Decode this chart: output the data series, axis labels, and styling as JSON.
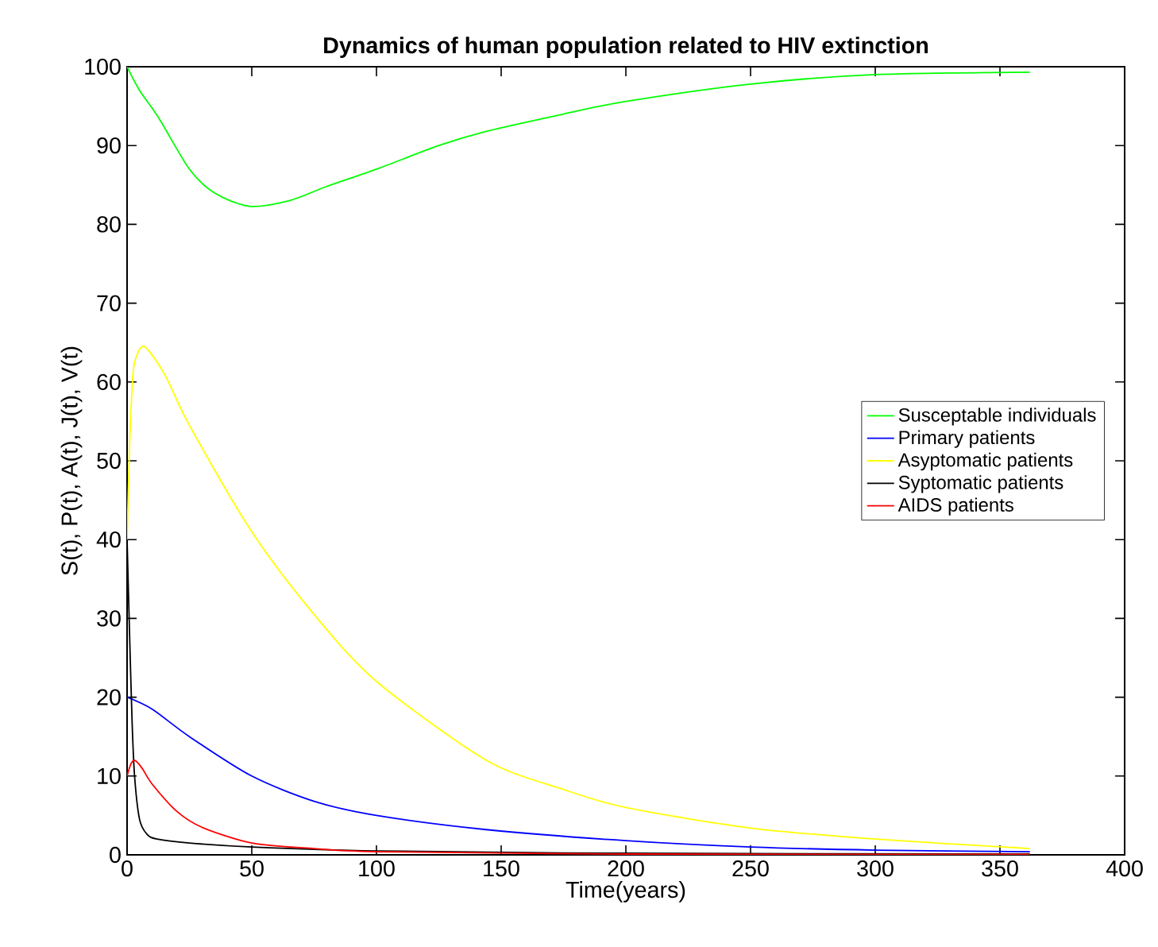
{
  "chart_data": {
    "type": "line",
    "title": "Dynamics of human population related to HIV extinction",
    "xlabel": "Time(years)",
    "ylabel": "S(t), P(t), A(t), J(t), V(t)",
    "xlim": [
      0,
      400
    ],
    "ylim": [
      0,
      100
    ],
    "xticks": [
      0,
      50,
      100,
      150,
      200,
      250,
      300,
      350,
      400
    ],
    "yticks": [
      0,
      10,
      20,
      30,
      40,
      50,
      60,
      70,
      80,
      90,
      100
    ],
    "grid": false,
    "legend": "right",
    "marker": "none",
    "line_style": "solid",
    "series": [
      {
        "name": "Susceptable individuals",
        "color": "#00ff00",
        "x": [
          0,
          5,
          12.7,
          25,
          35,
          49,
          65,
          80,
          100,
          125,
          144,
          175,
          200,
          250,
          300,
          362
        ],
        "values": [
          100,
          97,
          93.5,
          87,
          84,
          82.3,
          83,
          84.8,
          87,
          90,
          91.8,
          94,
          95.6,
          97.8,
          99,
          99.3
        ]
      },
      {
        "name": "Primary patients",
        "color": "#0000ff",
        "x": [
          0,
          10,
          25,
          50,
          75,
          100,
          144,
          200,
          250,
          300,
          362
        ],
        "values": [
          20,
          18.5,
          15,
          10,
          6.8,
          5,
          3.2,
          1.8,
          1,
          0.6,
          0.4
        ]
      },
      {
        "name": "Asyptomatic patients",
        "color": "#ffff00",
        "x": [
          0,
          1,
          2,
          3,
          6.8,
          15,
          25,
          50,
          75,
          100,
          144,
          175,
          200,
          250,
          300,
          362
        ],
        "values": [
          40,
          52,
          59,
          62.5,
          64.5,
          61,
          54.5,
          41,
          30.5,
          22,
          12,
          8.3,
          6,
          3.4,
          2,
          0.8
        ]
      },
      {
        "name": "Syptomatic patients",
        "color": "#000000",
        "x": [
          0,
          1,
          2,
          3,
          5,
          8,
          12,
          25,
          50,
          100,
          200,
          362
        ],
        "values": [
          40,
          28,
          17,
          10,
          4.5,
          2.6,
          2,
          1.5,
          1,
          0.5,
          0.2,
          0.1
        ]
      },
      {
        "name": "AIDS patients",
        "color": "#ff0000",
        "x": [
          0,
          1.5,
          3,
          6,
          10,
          20,
          30,
          50,
          75,
          100,
          200,
          362
        ],
        "values": [
          10,
          11.5,
          12,
          11,
          9,
          5.5,
          3.5,
          1.5,
          0.8,
          0.4,
          0.1,
          0.05
        ]
      }
    ]
  }
}
